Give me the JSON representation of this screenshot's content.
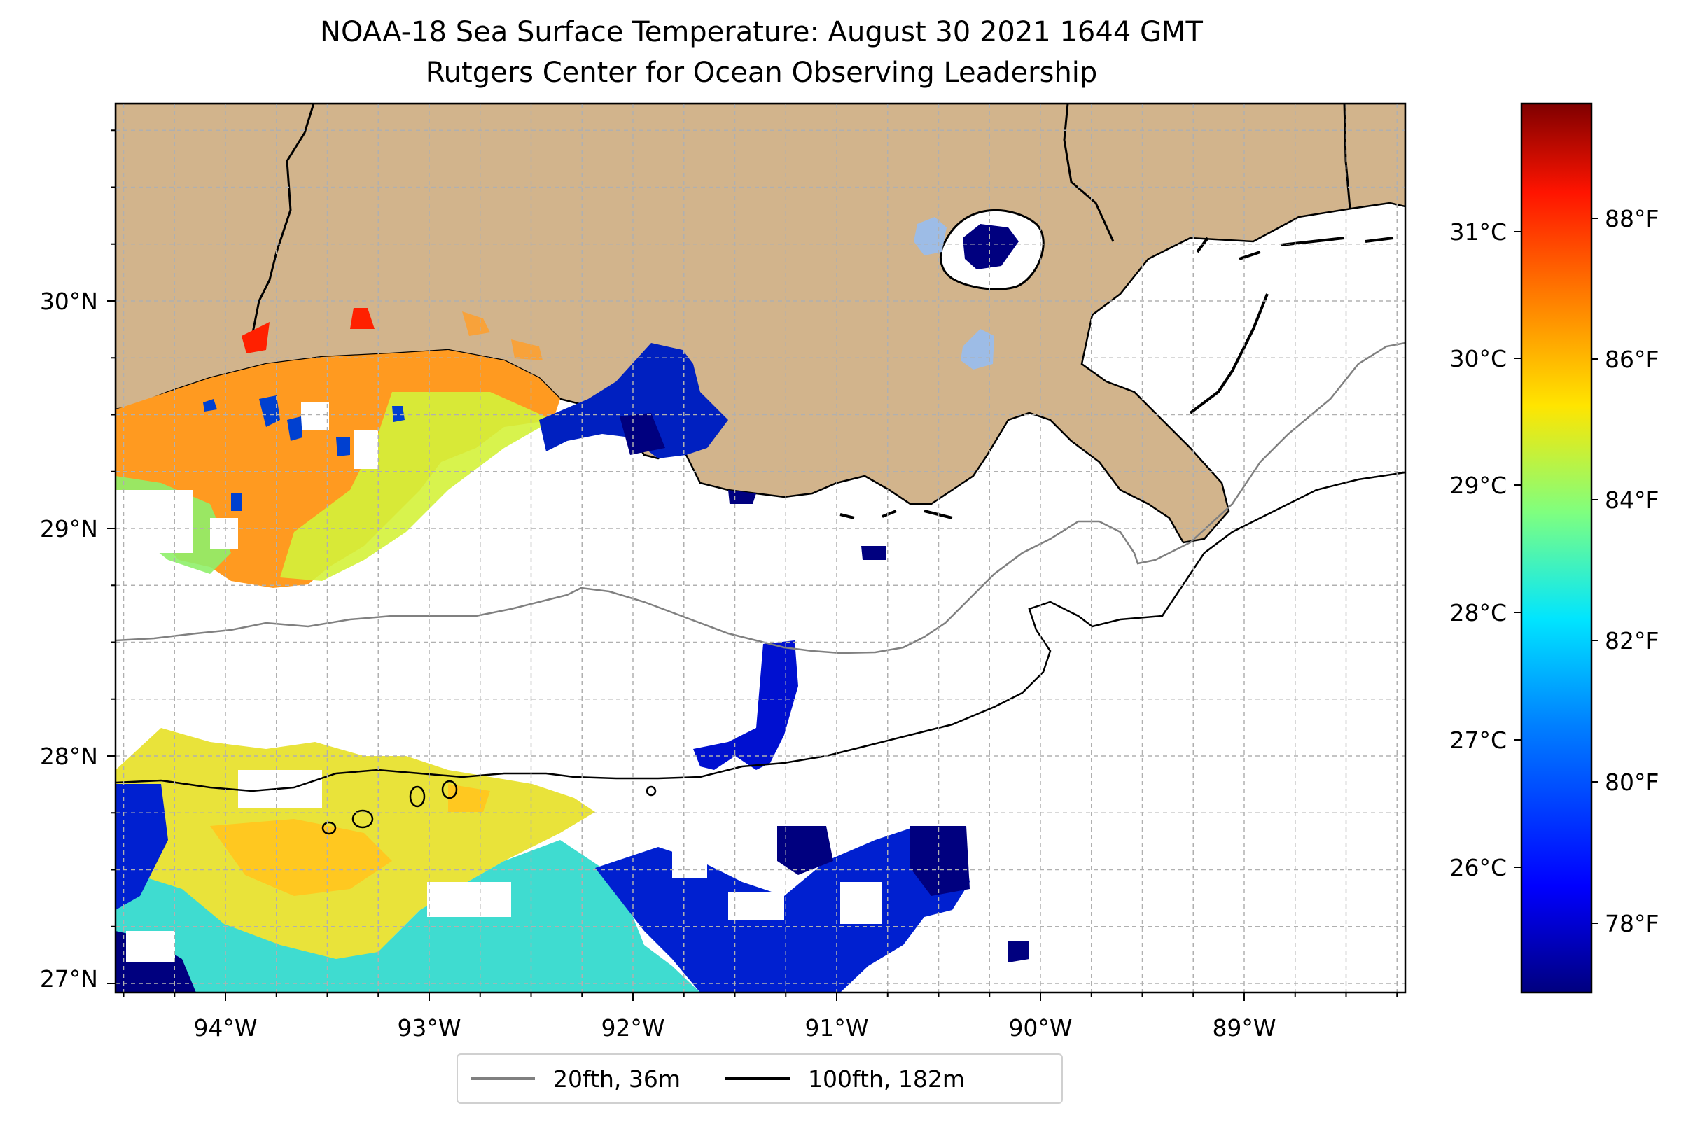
{
  "title": {
    "line1": "NOAA-18 Sea Surface Temperature: August 30 2021 1644 GMT",
    "line2": "Rutgers Center for Ocean Observing Leadership"
  },
  "axes": {
    "lon_ticks": [
      "94°W",
      "93°W",
      "92°W",
      "91°W",
      "90°W",
      "89°W"
    ],
    "lat_ticks": [
      "30°N",
      "29°N",
      "28°N",
      "27°N"
    ]
  },
  "colorbar": {
    "celsius_ticks": [
      "31°C",
      "30°C",
      "29°C",
      "28°C",
      "27°C",
      "26°C"
    ],
    "fahrenheit_ticks": [
      "88°F",
      "86°F",
      "84°F",
      "82°F",
      "80°F",
      "78°F"
    ],
    "colormap": [
      "#00007f",
      "#0000ff",
      "#007fff",
      "#00e5ff",
      "#7fff7f",
      "#ffe500",
      "#ff7f00",
      "#ff1400",
      "#7f0000"
    ]
  },
  "legend": {
    "items": [
      {
        "label": "20fth, 36m",
        "color": "#808080"
      },
      {
        "label": "100fth, 182m",
        "color": "#000000"
      }
    ]
  },
  "colors": {
    "land": "#d2b48c",
    "ocean_nodata": "#ffffff",
    "grid": "#b0b0b0"
  }
}
